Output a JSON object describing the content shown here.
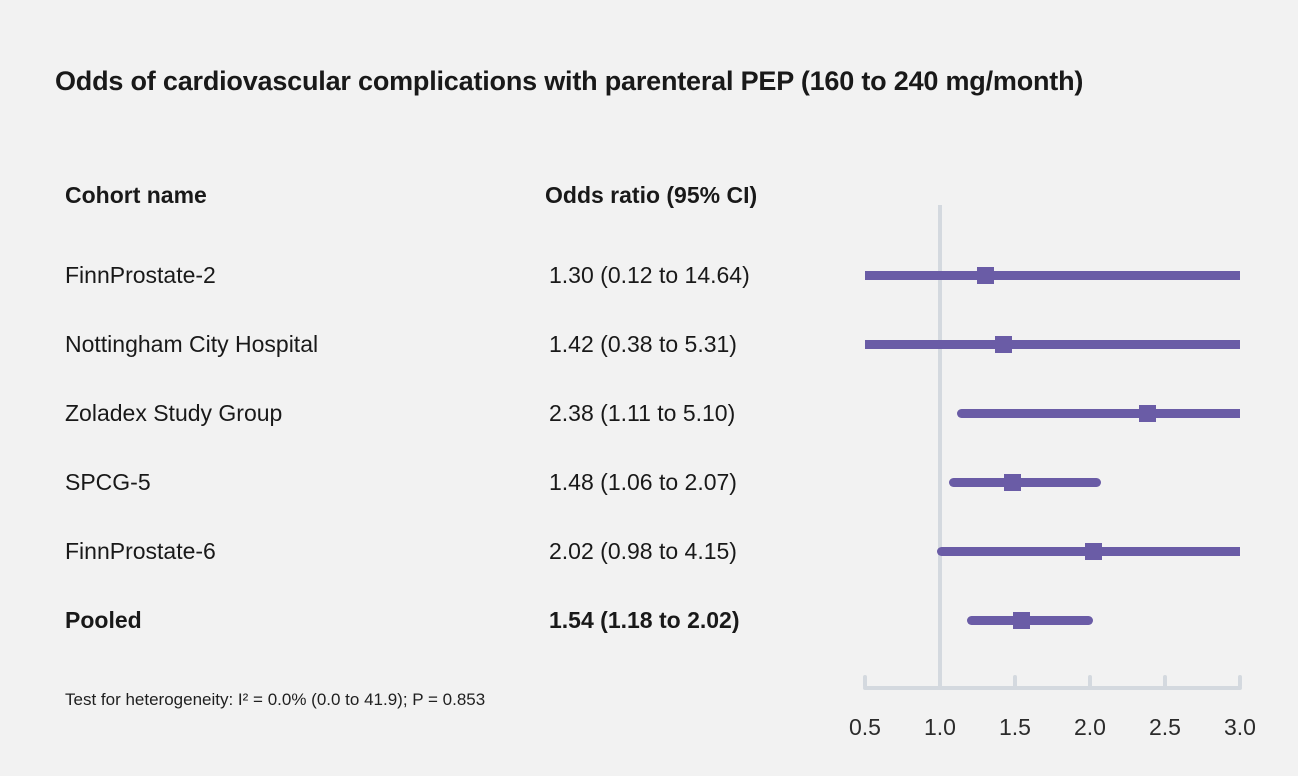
{
  "title": "Odds of cardiovascular complications with parenteral PEP (160 to 240 mg/month)",
  "table": {
    "cohort_header": "Cohort name",
    "or_header": "Odds ratio (95% CI)"
  },
  "footnote": "Test for heterogeneity: I² = 0.0% (0.0 to 41.9); P = 0.853",
  "colors": {
    "marker": "#6a5ca6",
    "axis": "#d4d9df",
    "background": "#f2f2f2",
    "text": "#191919"
  },
  "chart_data": {
    "type": "forest",
    "title": "Odds of cardiovascular complications with parenteral PEP (160 to 240 mg/month)",
    "xlabel": "",
    "xlim": [
      0.5,
      3.0
    ],
    "reference_line": 1.0,
    "axis_ticks": [
      0.5,
      1.0,
      1.5,
      2.0,
      2.5,
      3.0
    ],
    "tick_labels": [
      "0.5",
      "1.0",
      "1.5",
      "2.0",
      "2.5",
      "3.0"
    ],
    "rows": [
      {
        "name": "FinnProstate-2",
        "or_text": "1.30 (0.12 to 14.64)",
        "or": 1.3,
        "ci_low": 0.12,
        "ci_high": 14.64,
        "bold": false
      },
      {
        "name": "Nottingham City Hospital",
        "or_text": "1.42 (0.38 to 5.31)",
        "or": 1.42,
        "ci_low": 0.38,
        "ci_high": 5.31,
        "bold": false
      },
      {
        "name": "Zoladex Study Group",
        "or_text": "2.38 (1.11 to 5.10)",
        "or": 2.38,
        "ci_low": 1.11,
        "ci_high": 5.1,
        "bold": false
      },
      {
        "name": "SPCG-5",
        "or_text": "1.48 (1.06 to 2.07)",
        "or": 1.48,
        "ci_low": 1.06,
        "ci_high": 2.07,
        "bold": false
      },
      {
        "name": "FinnProstate-6",
        "or_text": "2.02 (0.98 to 4.15)",
        "or": 2.02,
        "ci_low": 0.98,
        "ci_high": 4.15,
        "bold": false
      },
      {
        "name": "Pooled",
        "or_text": "1.54 (1.18 to 2.02)",
        "or": 1.54,
        "ci_low": 1.18,
        "ci_high": 2.02,
        "bold": true
      }
    ]
  }
}
